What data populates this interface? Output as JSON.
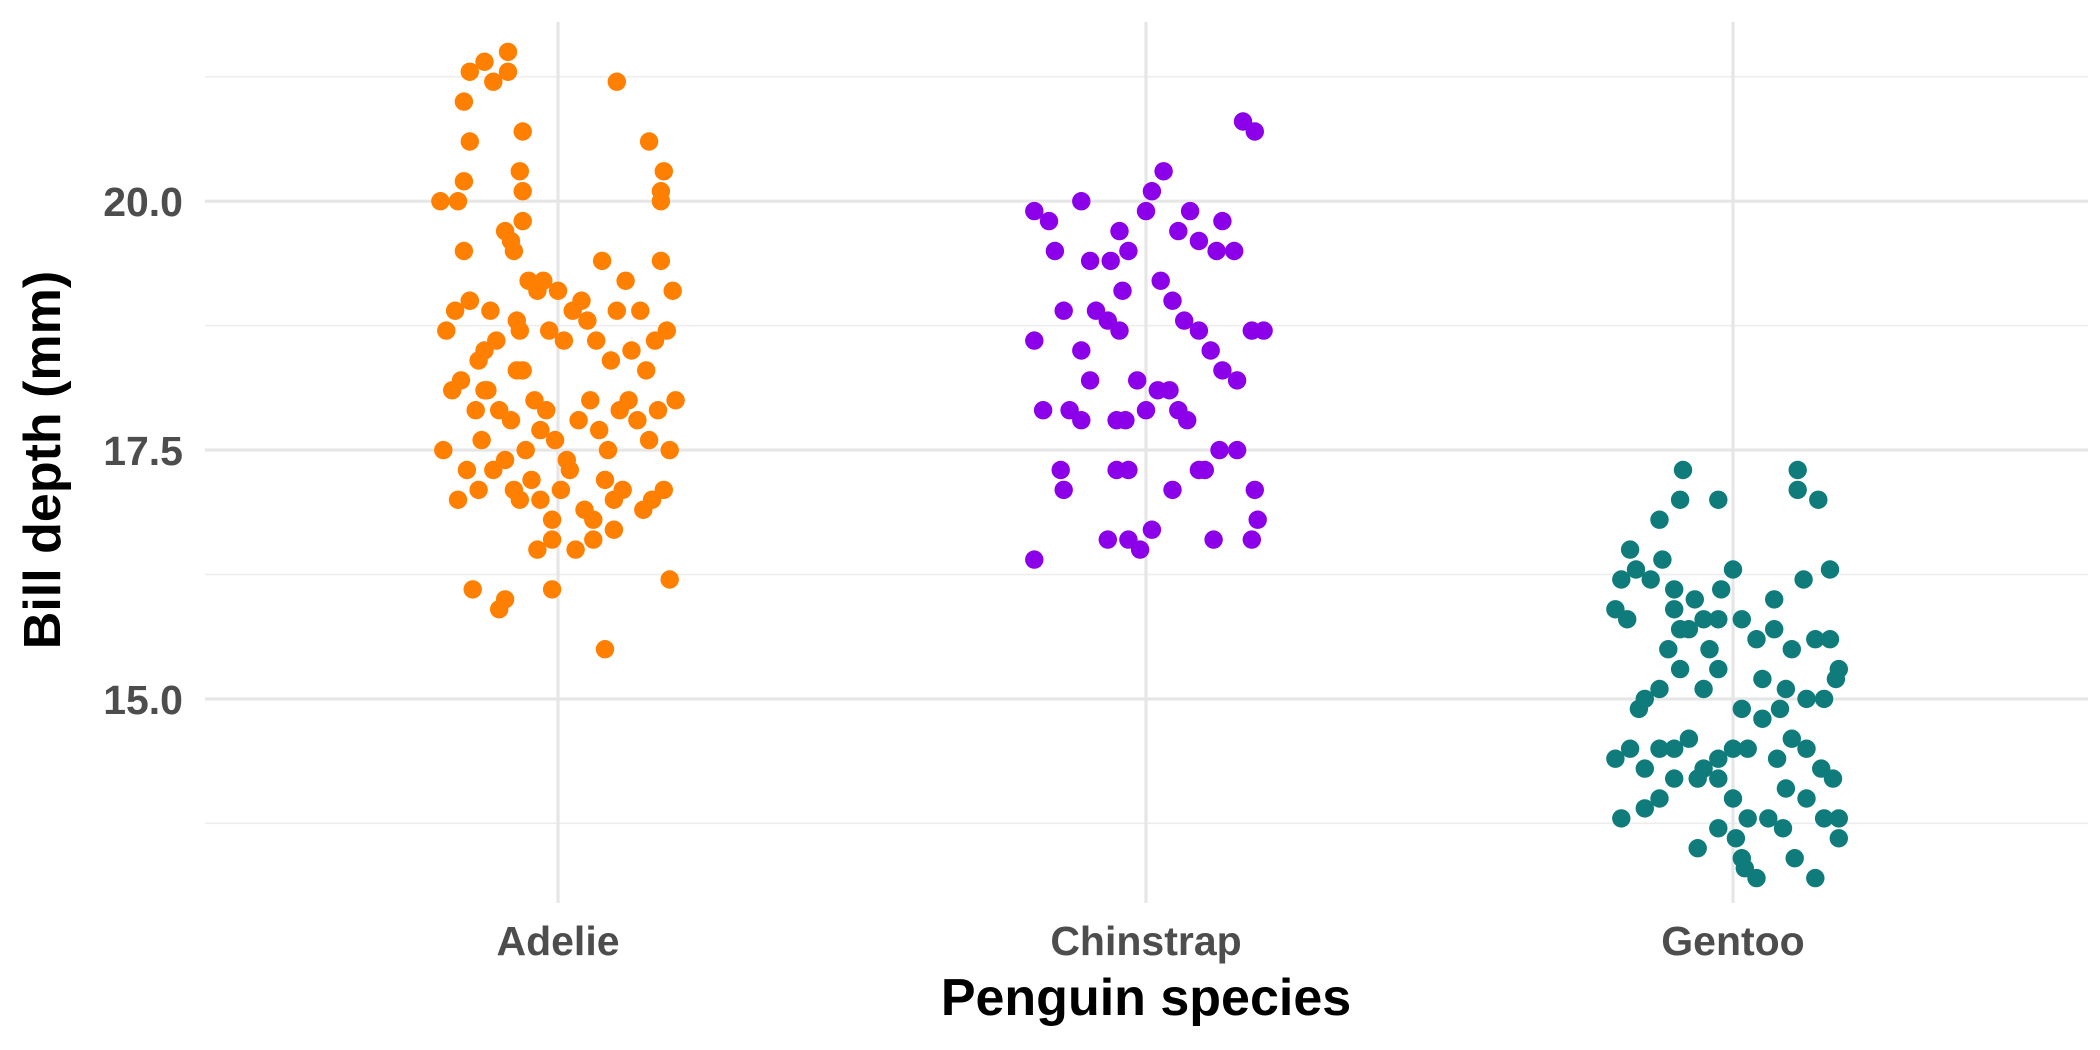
{
  "chart_data": {
    "type": "scatter",
    "subtype": "jitter",
    "title": "",
    "xlabel": "Penguin species",
    "ylabel": "Bill depth (mm)",
    "categories": [
      "Adelie",
      "Chinstrap",
      "Gentoo"
    ],
    "ylim": [
      12.95,
      21.8
    ],
    "yticks": [
      15.0,
      17.5,
      20.0
    ],
    "ytick_labels": [
      "15.0",
      "17.5",
      "20.0"
    ],
    "grid": true,
    "legend": "none",
    "colors": {
      "Adelie": "#ff7f00",
      "Chinstrap": "#8b00e8",
      "Gentoo": "#107b7b"
    },
    "series": [
      {
        "category": "Adelie",
        "points": [
          [
            0.35,
            20.1
          ],
          [
            -0.4,
            20.0
          ],
          [
            -0.3,
            20.6
          ],
          [
            -0.32,
            21.0
          ],
          [
            -0.3,
            21.3
          ],
          [
            -0.25,
            21.4
          ],
          [
            -0.22,
            21.2
          ],
          [
            -0.17,
            21.5
          ],
          [
            -0.17,
            21.3
          ],
          [
            -0.32,
            20.2
          ],
          [
            -0.34,
            20.0
          ],
          [
            -0.12,
            20.7
          ],
          [
            -0.13,
            20.3
          ],
          [
            -0.12,
            20.1
          ],
          [
            -0.12,
            19.8
          ],
          [
            0.2,
            21.2
          ],
          [
            0.31,
            20.6
          ],
          [
            0.36,
            20.3
          ],
          [
            0.35,
            20.0
          ],
          [
            -0.38,
            18.7
          ],
          [
            -0.35,
            18.9
          ],
          [
            -0.32,
            19.5
          ],
          [
            -0.3,
            19.0
          ],
          [
            -0.3,
            19.0
          ],
          [
            -0.27,
            18.4
          ],
          [
            -0.25,
            18.5
          ],
          [
            -0.25,
            18.1
          ],
          [
            -0.23,
            18.9
          ],
          [
            -0.21,
            18.6
          ],
          [
            -0.18,
            19.7
          ],
          [
            -0.16,
            19.6
          ],
          [
            -0.15,
            19.5
          ],
          [
            -0.14,
            18.8
          ],
          [
            -0.13,
            18.7
          ],
          [
            -0.12,
            18.3
          ],
          [
            -0.1,
            19.2
          ],
          [
            -0.07,
            19.1
          ],
          [
            -0.05,
            19.2
          ],
          [
            -0.03,
            18.7
          ],
          [
            0.0,
            19.1
          ],
          [
            0.02,
            18.6
          ],
          [
            0.05,
            18.9
          ],
          [
            0.08,
            19.0
          ],
          [
            0.1,
            18.8
          ],
          [
            0.13,
            18.6
          ],
          [
            0.15,
            19.4
          ],
          [
            0.18,
            18.4
          ],
          [
            0.2,
            18.9
          ],
          [
            0.23,
            19.2
          ],
          [
            0.25,
            18.5
          ],
          [
            0.28,
            18.9
          ],
          [
            0.3,
            18.3
          ],
          [
            0.33,
            18.6
          ],
          [
            0.35,
            19.4
          ],
          [
            0.37,
            18.7
          ],
          [
            0.39,
            19.1
          ],
          [
            -0.36,
            18.1
          ],
          [
            -0.33,
            18.2
          ],
          [
            -0.28,
            17.9
          ],
          [
            -0.26,
            17.6
          ],
          [
            -0.24,
            18.1
          ],
          [
            -0.2,
            17.9
          ],
          [
            -0.16,
            17.8
          ],
          [
            -0.14,
            18.3
          ],
          [
            -0.11,
            17.5
          ],
          [
            -0.08,
            18.0
          ],
          [
            -0.06,
            17.7
          ],
          [
            -0.04,
            17.9
          ],
          [
            -0.01,
            17.6
          ],
          [
            0.03,
            17.4
          ],
          [
            0.07,
            17.8
          ],
          [
            0.11,
            18.0
          ],
          [
            0.14,
            17.7
          ],
          [
            0.17,
            17.5
          ],
          [
            0.21,
            17.9
          ],
          [
            0.24,
            18.0
          ],
          [
            0.27,
            17.8
          ],
          [
            0.31,
            17.6
          ],
          [
            0.34,
            17.9
          ],
          [
            0.38,
            17.5
          ],
          [
            0.4,
            18.0
          ],
          [
            -0.39,
            17.5
          ],
          [
            -0.34,
            17.0
          ],
          [
            -0.31,
            17.3
          ],
          [
            -0.27,
            17.1
          ],
          [
            -0.22,
            17.3
          ],
          [
            -0.18,
            17.4
          ],
          [
            -0.15,
            17.1
          ],
          [
            -0.13,
            17.0
          ],
          [
            -0.09,
            17.2
          ],
          [
            -0.06,
            17.0
          ],
          [
            -0.02,
            16.8
          ],
          [
            0.01,
            17.1
          ],
          [
            0.04,
            17.3
          ],
          [
            0.09,
            16.9
          ],
          [
            0.12,
            16.8
          ],
          [
            0.16,
            17.2
          ],
          [
            0.19,
            17.0
          ],
          [
            0.22,
            17.1
          ],
          [
            0.29,
            16.9
          ],
          [
            0.32,
            17.0
          ],
          [
            0.36,
            17.1
          ],
          [
            -0.07,
            16.5
          ],
          [
            -0.02,
            16.6
          ],
          [
            0.06,
            16.5
          ],
          [
            0.12,
            16.6
          ],
          [
            0.19,
            16.7
          ],
          [
            -0.29,
            16.1
          ],
          [
            -0.2,
            15.9
          ],
          [
            -0.18,
            16.0
          ],
          [
            -0.02,
            16.1
          ],
          [
            0.38,
            16.2
          ],
          [
            0.16,
            15.5
          ]
        ]
      },
      {
        "category": "Chinstrap",
        "points": [
          [
            -0.38,
            19.9
          ],
          [
            -0.33,
            19.8
          ],
          [
            -0.31,
            19.5
          ],
          [
            -0.22,
            20.0
          ],
          [
            -0.19,
            19.4
          ],
          [
            -0.17,
            18.9
          ],
          [
            -0.12,
            19.4
          ],
          [
            -0.09,
            19.7
          ],
          [
            -0.08,
            19.1
          ],
          [
            -0.06,
            19.5
          ],
          [
            0.0,
            19.9
          ],
          [
            0.02,
            20.1
          ],
          [
            0.06,
            20.3
          ],
          [
            0.11,
            19.7
          ],
          [
            0.15,
            19.9
          ],
          [
            0.18,
            19.6
          ],
          [
            0.24,
            19.5
          ],
          [
            0.26,
            19.8
          ],
          [
            0.3,
            19.5
          ],
          [
            0.33,
            20.8
          ],
          [
            0.37,
            20.7
          ],
          [
            -0.38,
            18.6
          ],
          [
            -0.28,
            18.9
          ],
          [
            -0.22,
            18.5
          ],
          [
            -0.19,
            18.2
          ],
          [
            -0.13,
            18.8
          ],
          [
            -0.09,
            18.7
          ],
          [
            -0.03,
            18.2
          ],
          [
            0.05,
            19.2
          ],
          [
            0.09,
            19.0
          ],
          [
            0.13,
            18.8
          ],
          [
            0.18,
            18.7
          ],
          [
            0.22,
            18.5
          ],
          [
            0.26,
            18.3
          ],
          [
            0.31,
            18.2
          ],
          [
            0.36,
            18.7
          ],
          [
            0.4,
            18.7
          ],
          [
            -0.35,
            17.9
          ],
          [
            -0.26,
            17.9
          ],
          [
            -0.22,
            17.8
          ],
          [
            -0.1,
            17.8
          ],
          [
            -0.07,
            17.8
          ],
          [
            0.0,
            17.9
          ],
          [
            0.04,
            18.1
          ],
          [
            0.08,
            18.1
          ],
          [
            0.11,
            17.9
          ],
          [
            0.14,
            17.8
          ],
          [
            -0.29,
            17.3
          ],
          [
            -0.28,
            17.1
          ],
          [
            -0.1,
            17.3
          ],
          [
            -0.06,
            17.3
          ],
          [
            0.09,
            17.1
          ],
          [
            0.18,
            17.3
          ],
          [
            0.2,
            17.3
          ],
          [
            0.25,
            17.5
          ],
          [
            0.31,
            17.5
          ],
          [
            0.37,
            17.1
          ],
          [
            -0.38,
            16.4
          ],
          [
            -0.13,
            16.6
          ],
          [
            -0.06,
            16.6
          ],
          [
            -0.02,
            16.5
          ],
          [
            0.02,
            16.7
          ],
          [
            0.23,
            16.6
          ],
          [
            0.36,
            16.6
          ],
          [
            0.38,
            16.8
          ]
        ]
      },
      {
        "category": "Gentoo",
        "points": [
          [
            -0.17,
            17.3
          ],
          [
            -0.18,
            17.0
          ],
          [
            -0.05,
            17.0
          ],
          [
            0.22,
            17.3
          ],
          [
            0.22,
            17.1
          ],
          [
            0.29,
            17.0
          ],
          [
            -0.35,
            16.5
          ],
          [
            -0.38,
            16.2
          ],
          [
            -0.33,
            16.3
          ],
          [
            -0.28,
            16.2
          ],
          [
            -0.25,
            16.8
          ],
          [
            -0.24,
            16.4
          ],
          [
            -0.2,
            16.1
          ],
          [
            -0.13,
            16.0
          ],
          [
            -0.04,
            16.1
          ],
          [
            0.0,
            16.3
          ],
          [
            0.14,
            16.0
          ],
          [
            0.24,
            16.2
          ],
          [
            0.33,
            16.3
          ],
          [
            -0.4,
            15.9
          ],
          [
            -0.36,
            15.8
          ],
          [
            -0.2,
            15.9
          ],
          [
            -0.18,
            15.7
          ],
          [
            -0.15,
            15.7
          ],
          [
            -0.1,
            15.8
          ],
          [
            -0.05,
            15.8
          ],
          [
            0.03,
            15.8
          ],
          [
            0.08,
            15.6
          ],
          [
            0.14,
            15.7
          ],
          [
            0.2,
            15.5
          ],
          [
            0.28,
            15.6
          ],
          [
            0.33,
            15.6
          ],
          [
            -0.3,
            15.0
          ],
          [
            -0.25,
            15.1
          ],
          [
            -0.18,
            15.3
          ],
          [
            -0.1,
            15.1
          ],
          [
            -0.05,
            15.3
          ],
          [
            0.03,
            14.9
          ],
          [
            0.1,
            15.2
          ],
          [
            0.18,
            15.1
          ],
          [
            0.25,
            15.0
          ],
          [
            0.31,
            15.0
          ],
          [
            0.36,
            15.3
          ],
          [
            0.35,
            15.2
          ],
          [
            -0.4,
            14.4
          ],
          [
            -0.35,
            14.5
          ],
          [
            -0.3,
            14.3
          ],
          [
            -0.25,
            14.5
          ],
          [
            -0.2,
            14.5
          ],
          [
            -0.15,
            14.6
          ],
          [
            -0.1,
            14.3
          ],
          [
            -0.05,
            14.4
          ],
          [
            0.0,
            14.5
          ],
          [
            0.05,
            14.5
          ],
          [
            0.1,
            14.8
          ],
          [
            0.15,
            14.4
          ],
          [
            0.2,
            14.6
          ],
          [
            0.25,
            14.5
          ],
          [
            0.3,
            14.3
          ],
          [
            0.34,
            14.2
          ],
          [
            -0.38,
            13.8
          ],
          [
            -0.3,
            13.9
          ],
          [
            -0.25,
            14.0
          ],
          [
            -0.2,
            14.2
          ],
          [
            -0.12,
            14.2
          ],
          [
            -0.05,
            14.2
          ],
          [
            0.0,
            14.0
          ],
          [
            0.05,
            13.8
          ],
          [
            0.12,
            13.8
          ],
          [
            0.18,
            14.1
          ],
          [
            0.25,
            14.0
          ],
          [
            0.31,
            13.8
          ],
          [
            0.36,
            13.8
          ],
          [
            -0.12,
            13.5
          ],
          [
            -0.05,
            13.7
          ],
          [
            0.01,
            13.6
          ],
          [
            0.03,
            13.4
          ],
          [
            0.04,
            13.3
          ],
          [
            0.08,
            13.2
          ],
          [
            0.17,
            13.7
          ],
          [
            0.21,
            13.4
          ],
          [
            0.28,
            13.2
          ],
          [
            0.36,
            13.6
          ],
          [
            -0.22,
            15.5
          ],
          [
            -0.08,
            15.5
          ],
          [
            0.16,
            14.9
          ],
          [
            -0.32,
            14.9
          ]
        ]
      }
    ]
  }
}
